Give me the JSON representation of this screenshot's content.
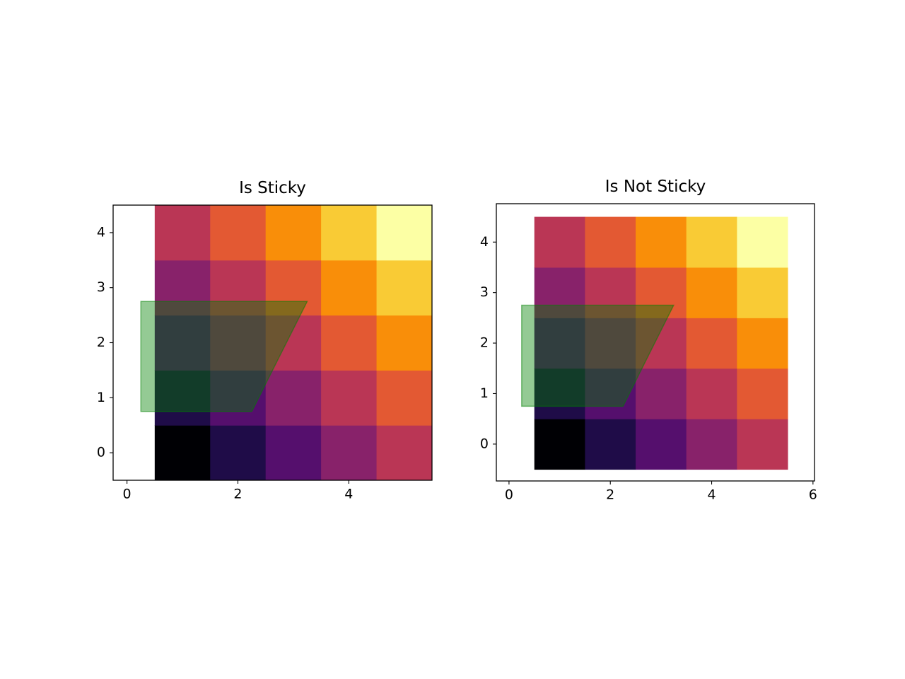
{
  "chart_data": [
    {
      "type": "heatmap",
      "title": "Is Sticky",
      "z": [
        [
          0,
          1,
          2,
          3,
          4
        ],
        [
          1,
          2,
          3,
          4,
          5
        ],
        [
          2,
          3,
          4,
          5,
          6
        ],
        [
          3,
          4,
          5,
          6,
          7
        ],
        [
          4,
          5,
          6,
          7,
          8
        ]
      ],
      "extent": [
        0.5,
        5.5,
        -0.5,
        4.5
      ],
      "zlim": [
        0,
        8
      ],
      "cmap": [
        "#000004",
        "#1f0c48",
        "#550f6d",
        "#88226a",
        "#ba3655",
        "#e35933",
        "#f98e09",
        "#f9cb35",
        "#fcffa4"
      ],
      "polygon": {
        "x": [
          0.25,
          2.25,
          3.25,
          0.25
        ],
        "y": [
          0.75,
          0.75,
          2.75,
          2.75
        ],
        "color": "green"
      },
      "xlim": [
        -0.25,
        5.5
      ],
      "ylim": [
        -0.5,
        4.5
      ],
      "xticks": [
        0,
        2,
        4
      ],
      "yticks": [
        0,
        1,
        2,
        3,
        4
      ]
    },
    {
      "type": "heatmap",
      "title": "Is Not Sticky",
      "z": [
        [
          0,
          1,
          2,
          3,
          4
        ],
        [
          1,
          2,
          3,
          4,
          5
        ],
        [
          2,
          3,
          4,
          5,
          6
        ],
        [
          3,
          4,
          5,
          6,
          7
        ],
        [
          4,
          5,
          6,
          7,
          8
        ]
      ],
      "extent": [
        0.5,
        5.5,
        -0.5,
        4.5
      ],
      "zlim": [
        0,
        8
      ],
      "cmap": [
        "#000004",
        "#1f0c48",
        "#550f6d",
        "#88226a",
        "#ba3655",
        "#e35933",
        "#f98e09",
        "#f9cb35",
        "#fcffa4"
      ],
      "polygon": {
        "x": [
          0.25,
          2.25,
          3.25,
          0.25
        ],
        "y": [
          0.75,
          0.75,
          2.75,
          2.75
        ],
        "color": "green"
      },
      "xlim": [
        -0.25,
        6.03
      ],
      "ylim": [
        -0.73,
        4.76
      ],
      "xticks": [
        0,
        2,
        4,
        6
      ],
      "yticks": [
        0,
        1,
        2,
        3,
        4
      ]
    }
  ]
}
